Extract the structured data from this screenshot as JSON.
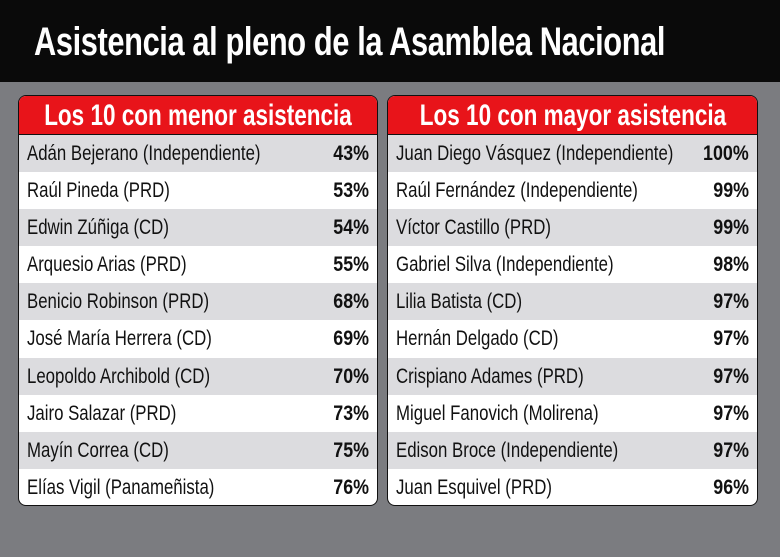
{
  "title": "Asistencia al pleno de la Asamblea Nacional",
  "colors": {
    "header_bg": "#0a0a0a",
    "panel_header": "#e8141a",
    "background": "#7b7c80",
    "row_alt": "#dcdcdf"
  },
  "chart_data": [
    {
      "type": "table",
      "title": "Los 10 con menor asistencia",
      "rows": [
        {
          "name": "Adán Bejerano (Independiente)",
          "value": "43%"
        },
        {
          "name": "Raúl Pineda (PRD)",
          "value": "53%"
        },
        {
          "name": "Edwin Zúñiga (CD)",
          "value": "54%"
        },
        {
          "name": "Arquesio Arias (PRD)",
          "value": "55%"
        },
        {
          "name": "Benicio Robinson (PRD)",
          "value": "68%"
        },
        {
          "name": "José María Herrera (CD)",
          "value": "69%"
        },
        {
          "name": "Leopoldo Archibold (CD)",
          "value": "70%"
        },
        {
          "name": "Jairo Salazar (PRD)",
          "value": "73%"
        },
        {
          "name": "Mayín Correa (CD)",
          "value": "75%"
        },
        {
          "name": "Elías Vigil (Panameñista)",
          "value": "76%"
        }
      ]
    },
    {
      "type": "table",
      "title": "Los 10 con mayor asistencia",
      "rows": [
        {
          "name": "Juan Diego Vásquez (Independiente)",
          "value": "100%"
        },
        {
          "name": "Raúl Fernández (Independiente)",
          "value": "99%"
        },
        {
          "name": "Víctor Castillo (PRD)",
          "value": "99%"
        },
        {
          "name": "Gabriel Silva (Independiente)",
          "value": "98%"
        },
        {
          "name": "Lilia Batista (CD)",
          "value": "97%"
        },
        {
          "name": "Hernán Delgado (CD)",
          "value": "97%"
        },
        {
          "name": "Crispiano Adames (PRD)",
          "value": "97%"
        },
        {
          "name": "Miguel Fanovich  (Molirena)",
          "value": "97%"
        },
        {
          "name": "Edison Broce (Independiente)",
          "value": "97%"
        },
        {
          "name": "Juan Esquivel (PRD)",
          "value": "96%"
        }
      ]
    }
  ]
}
